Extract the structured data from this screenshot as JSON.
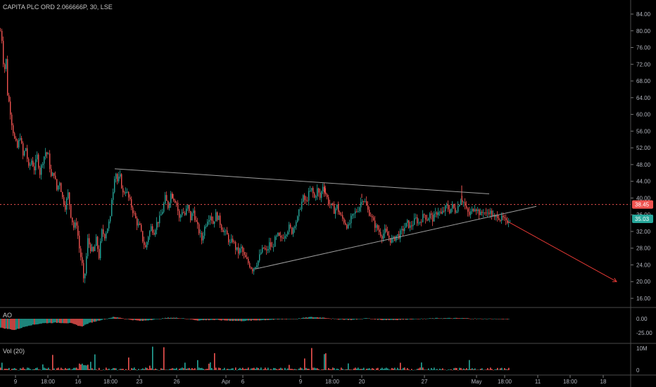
{
  "header": {
    "title": "CAPITA PLC ORD 2.066666P, 30, LSE"
  },
  "panes": {
    "ao_label": "AO",
    "vol_label": "Vol (20)"
  },
  "chart_data": [
    {
      "type": "candlestick",
      "title": "CAPITA PLC ORD 2.066666P, 30, LSE",
      "ylim": [
        14,
        88
      ],
      "y_ticks": [
        "84.00",
        "80.00",
        "76.00",
        "72.00",
        "68.00",
        "64.00",
        "60.00",
        "56.00",
        "52.00",
        "48.00",
        "44.00",
        "40.00",
        "36.00",
        "32.00",
        "28.00",
        "24.00",
        "20.00",
        "16.00"
      ],
      "x_ticks": [
        "9",
        "18:00",
        "16",
        "18:00",
        "23",
        "26",
        "Apr",
        "6",
        "9",
        "18:00",
        "20",
        "27",
        "May",
        "18:00",
        "11",
        "18:00",
        "18"
      ],
      "price_path": [
        [
          0,
          80
        ],
        [
          2,
          78
        ],
        [
          5,
          70
        ],
        [
          8,
          73
        ],
        [
          10,
          65
        ],
        [
          13,
          62
        ],
        [
          16,
          58
        ],
        [
          20,
          54
        ],
        [
          24,
          52
        ],
        [
          28,
          55
        ],
        [
          32,
          50
        ],
        [
          36,
          52
        ],
        [
          40,
          47
        ],
        [
          44,
          49
        ],
        [
          48,
          47
        ],
        [
          52,
          50
        ],
        [
          56,
          46
        ],
        [
          60,
          49
        ],
        [
          64,
          51
        ],
        [
          68,
          50
        ],
        [
          72,
          45
        ],
        [
          76,
          46
        ],
        [
          80,
          42
        ],
        [
          84,
          44
        ],
        [
          88,
          40
        ],
        [
          92,
          38
        ],
        [
          96,
          41
        ],
        [
          100,
          36
        ],
        [
          104,
          33
        ],
        [
          108,
          34
        ],
        [
          112,
          28
        ],
        [
          116,
          24
        ],
        [
          118,
          20
        ],
        [
          120,
          22
        ],
        [
          124,
          30
        ],
        [
          128,
          28
        ],
        [
          132,
          27
        ],
        [
          136,
          30
        ],
        [
          140,
          26
        ],
        [
          144,
          32
        ],
        [
          148,
          31
        ],
        [
          152,
          33
        ],
        [
          156,
          35
        ],
        [
          158,
          40
        ],
        [
          160,
          42
        ],
        [
          163,
          47
        ],
        [
          166,
          44
        ],
        [
          170,
          45
        ],
        [
          174,
          41
        ],
        [
          178,
          42
        ],
        [
          182,
          40
        ],
        [
          186,
          38
        ],
        [
          190,
          36
        ],
        [
          194,
          34
        ],
        [
          198,
          33
        ],
        [
          202,
          30
        ],
        [
          206,
          28
        ],
        [
          210,
          31
        ],
        [
          214,
          33
        ],
        [
          218,
          32
        ],
        [
          222,
          34
        ],
        [
          226,
          35
        ],
        [
          230,
          37
        ],
        [
          234,
          40
        ],
        [
          238,
          38
        ],
        [
          242,
          41
        ],
        [
          246,
          40
        ],
        [
          250,
          39
        ],
        [
          254,
          35
        ],
        [
          258,
          37
        ],
        [
          262,
          36
        ],
        [
          266,
          38
        ],
        [
          270,
          35
        ],
        [
          274,
          37
        ],
        [
          278,
          34
        ],
        [
          282,
          32
        ],
        [
          286,
          30
        ],
        [
          290,
          33
        ],
        [
          294,
          35
        ],
        [
          298,
          36
        ],
        [
          302,
          34
        ],
        [
          306,
          36
        ],
        [
          310,
          35
        ],
        [
          314,
          33
        ],
        [
          318,
          32
        ],
        [
          322,
          31
        ],
        [
          326,
          29
        ],
        [
          330,
          30
        ],
        [
          334,
          28
        ],
        [
          338,
          27
        ],
        [
          342,
          28
        ],
        [
          346,
          26
        ],
        [
          350,
          25
        ],
        [
          354,
          24
        ],
        [
          358,
          23
        ],
        [
          362,
          24
        ],
        [
          366,
          25
        ],
        [
          370,
          27
        ],
        [
          374,
          28
        ],
        [
          378,
          27
        ],
        [
          382,
          29
        ],
        [
          386,
          28
        ],
        [
          390,
          30
        ],
        [
          394,
          31
        ],
        [
          398,
          30
        ],
        [
          402,
          31
        ],
        [
          406,
          32
        ],
        [
          410,
          33
        ],
        [
          414,
          32
        ],
        [
          418,
          34
        ],
        [
          422,
          35
        ],
        [
          426,
          38
        ],
        [
          430,
          40
        ],
        [
          434,
          39
        ],
        [
          438,
          41
        ],
        [
          442,
          42
        ],
        [
          446,
          40
        ],
        [
          450,
          42
        ],
        [
          454,
          40
        ],
        [
          458,
          43
        ],
        [
          462,
          41
        ],
        [
          466,
          39
        ],
        [
          470,
          38
        ],
        [
          474,
          37
        ],
        [
          478,
          38
        ],
        [
          482,
          36
        ],
        [
          486,
          35
        ],
        [
          490,
          34
        ],
        [
          494,
          33
        ],
        [
          498,
          35
        ],
        [
          502,
          36
        ],
        [
          506,
          37
        ],
        [
          510,
          38
        ],
        [
          514,
          40
        ],
        [
          518,
          39
        ],
        [
          522,
          37
        ],
        [
          526,
          36
        ],
        [
          530,
          34
        ],
        [
          534,
          33
        ],
        [
          538,
          32
        ],
        [
          542,
          31
        ],
        [
          546,
          32
        ],
        [
          550,
          31
        ],
        [
          554,
          30
        ],
        [
          558,
          30
        ],
        [
          562,
          31
        ],
        [
          566,
          31
        ],
        [
          570,
          32
        ],
        [
          574,
          33
        ],
        [
          578,
          34
        ],
        [
          582,
          33
        ],
        [
          586,
          34
        ],
        [
          590,
          35
        ],
        [
          594,
          34
        ],
        [
          598,
          35
        ],
        [
          602,
          36
        ],
        [
          606,
          35
        ],
        [
          610,
          36
        ],
        [
          614,
          35
        ],
        [
          618,
          36
        ],
        [
          622,
          37
        ],
        [
          626,
          36
        ],
        [
          630,
          37
        ],
        [
          634,
          38
        ],
        [
          638,
          37
        ],
        [
          642,
          38
        ],
        [
          646,
          37
        ],
        [
          650,
          38
        ],
        [
          654,
          40
        ],
        [
          658,
          39
        ],
        [
          662,
          37
        ],
        [
          666,
          36
        ],
        [
          670,
          37
        ],
        [
          674,
          38
        ],
        [
          678,
          37
        ],
        [
          682,
          36
        ],
        [
          686,
          37
        ],
        [
          690,
          36
        ],
        [
          694,
          37
        ],
        [
          698,
          36
        ],
        [
          702,
          35
        ],
        [
          706,
          36
        ],
        [
          710,
          35
        ],
        [
          714,
          35
        ],
        [
          718,
          34
        ],
        [
          722,
          35
        ],
        [
          724,
          35.03
        ]
      ],
      "spikes": [
        [
          163,
          47
        ],
        [
          656,
          43
        ],
        [
          462,
          43
        ],
        [
          246,
          41
        ],
        [
          514,
          41
        ]
      ],
      "triangle": {
        "upper": [
          [
            163,
            47
          ],
          [
            695,
            41
          ]
        ],
        "lower": [
          [
            362,
            23
          ],
          [
            762,
            38
          ]
        ]
      },
      "arrow": {
        "from": [
          720,
          34.5
        ],
        "to": [
          876,
          20
        ]
      },
      "last_price": "35.03",
      "marked_price": "38.45",
      "colors": {
        "up": "#26a69a",
        "down": "#ef5350",
        "line": "#9e9e9e",
        "arrow": "#e53935",
        "marker": "#ef5350",
        "last": "#26a69a"
      }
    },
    {
      "type": "histogram",
      "name": "AO",
      "ylim": [
        -40,
        15
      ],
      "y_ticks": [
        "0.00",
        "-25.00"
      ],
      "values_path": [
        [
          0,
          -16
        ],
        [
          20,
          -20
        ],
        [
          40,
          -12
        ],
        [
          60,
          -8
        ],
        [
          80,
          -7
        ],
        [
          100,
          -8
        ],
        [
          115,
          -14
        ],
        [
          125,
          -8
        ],
        [
          140,
          -3
        ],
        [
          160,
          3
        ],
        [
          170,
          2
        ],
        [
          180,
          -1
        ],
        [
          200,
          -4
        ],
        [
          220,
          -1
        ],
        [
          240,
          2
        ],
        [
          260,
          1
        ],
        [
          280,
          -3
        ],
        [
          300,
          -2
        ],
        [
          320,
          -3
        ],
        [
          340,
          -4
        ],
        [
          360,
          -3
        ],
        [
          380,
          -2
        ],
        [
          400,
          -1
        ],
        [
          420,
          0
        ],
        [
          440,
          3
        ],
        [
          460,
          2
        ],
        [
          480,
          -1
        ],
        [
          500,
          -2
        ],
        [
          520,
          1
        ],
        [
          540,
          -2
        ],
        [
          560,
          -2
        ],
        [
          580,
          -1
        ],
        [
          600,
          0
        ],
        [
          620,
          1
        ],
        [
          640,
          1
        ],
        [
          660,
          1
        ],
        [
          680,
          0
        ],
        [
          700,
          0
        ],
        [
          722,
          -1
        ]
      ]
    },
    {
      "type": "bar",
      "name": "Vol (20)",
      "ylim": [
        0,
        12000000
      ],
      "y_ticks": [
        "10M",
        "0"
      ]
    }
  ]
}
